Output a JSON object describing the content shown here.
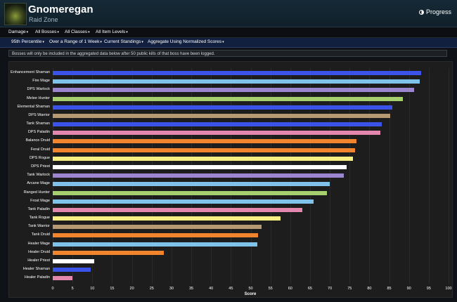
{
  "header": {
    "title": "Gnomeregan",
    "subtitle": "Raid Zone",
    "progress_label": "Progress"
  },
  "filters_row1": [
    "Damage",
    "All Bosses",
    "All Classes",
    "All Item Levels"
  ],
  "filters_row2": [
    "95th Percentile",
    "Over a Range of 1 Week",
    "Current Standings",
    "Aggregate Using Normalized Scores"
  ],
  "notice": "Bosses will only be included in the aggregated data below after 50 public kills of that boss have been logged.",
  "chart_data": {
    "type": "bar",
    "orientation": "horizontal",
    "xlabel": "Score",
    "xlim": [
      0,
      100
    ],
    "xticks": [
      0,
      5,
      10,
      15,
      20,
      25,
      30,
      35,
      40,
      45,
      50,
      55,
      60,
      65,
      70,
      75,
      80,
      85,
      90,
      95,
      100
    ],
    "grid": true,
    "categories": [
      "Enhancement Shaman",
      "Fire Mage",
      "DPS Warlock",
      "Melee Hunter",
      "Elemental Shaman",
      "DPS Warrior",
      "Tank Shaman",
      "DPS Paladin",
      "Balance Druid",
      "Feral Druid",
      "DPS Rogue",
      "DPS Priest",
      "Tank Warlock",
      "Arcane Mage",
      "Ranged Hunter",
      "Frost Mage",
      "Tank Paladin",
      "Tank Rogue",
      "Tank Warrior",
      "Tank Druid",
      "Healer Mage",
      "Healer Druid",
      "Healer Priest",
      "Healer Shaman",
      "Healer Paladin"
    ],
    "values": [
      93.0,
      92.7,
      91.3,
      88.5,
      85.8,
      85.2,
      83.2,
      82.7,
      76.8,
      76.4,
      75.9,
      74.2,
      73.6,
      69.9,
      69.2,
      65.9,
      63.1,
      57.6,
      52.7,
      51.9,
      51.7,
      28.1,
      10.4,
      9.6,
      5.0
    ],
    "colors": [
      "#3b53e8",
      "#7fc3ea",
      "#9c86cf",
      "#a6cf6d",
      "#3b53e8",
      "#b89a72",
      "#3b53e8",
      "#e387ae",
      "#f0852e",
      "#f0852e",
      "#f7ef82",
      "#ffffff",
      "#9c86cf",
      "#7fc3ea",
      "#a6cf6d",
      "#7fc3ea",
      "#e387ae",
      "#f7ef82",
      "#b89a72",
      "#f0852e",
      "#7fc3ea",
      "#f0852e",
      "#ffffff",
      "#3b53e8",
      "#e387ae"
    ]
  }
}
